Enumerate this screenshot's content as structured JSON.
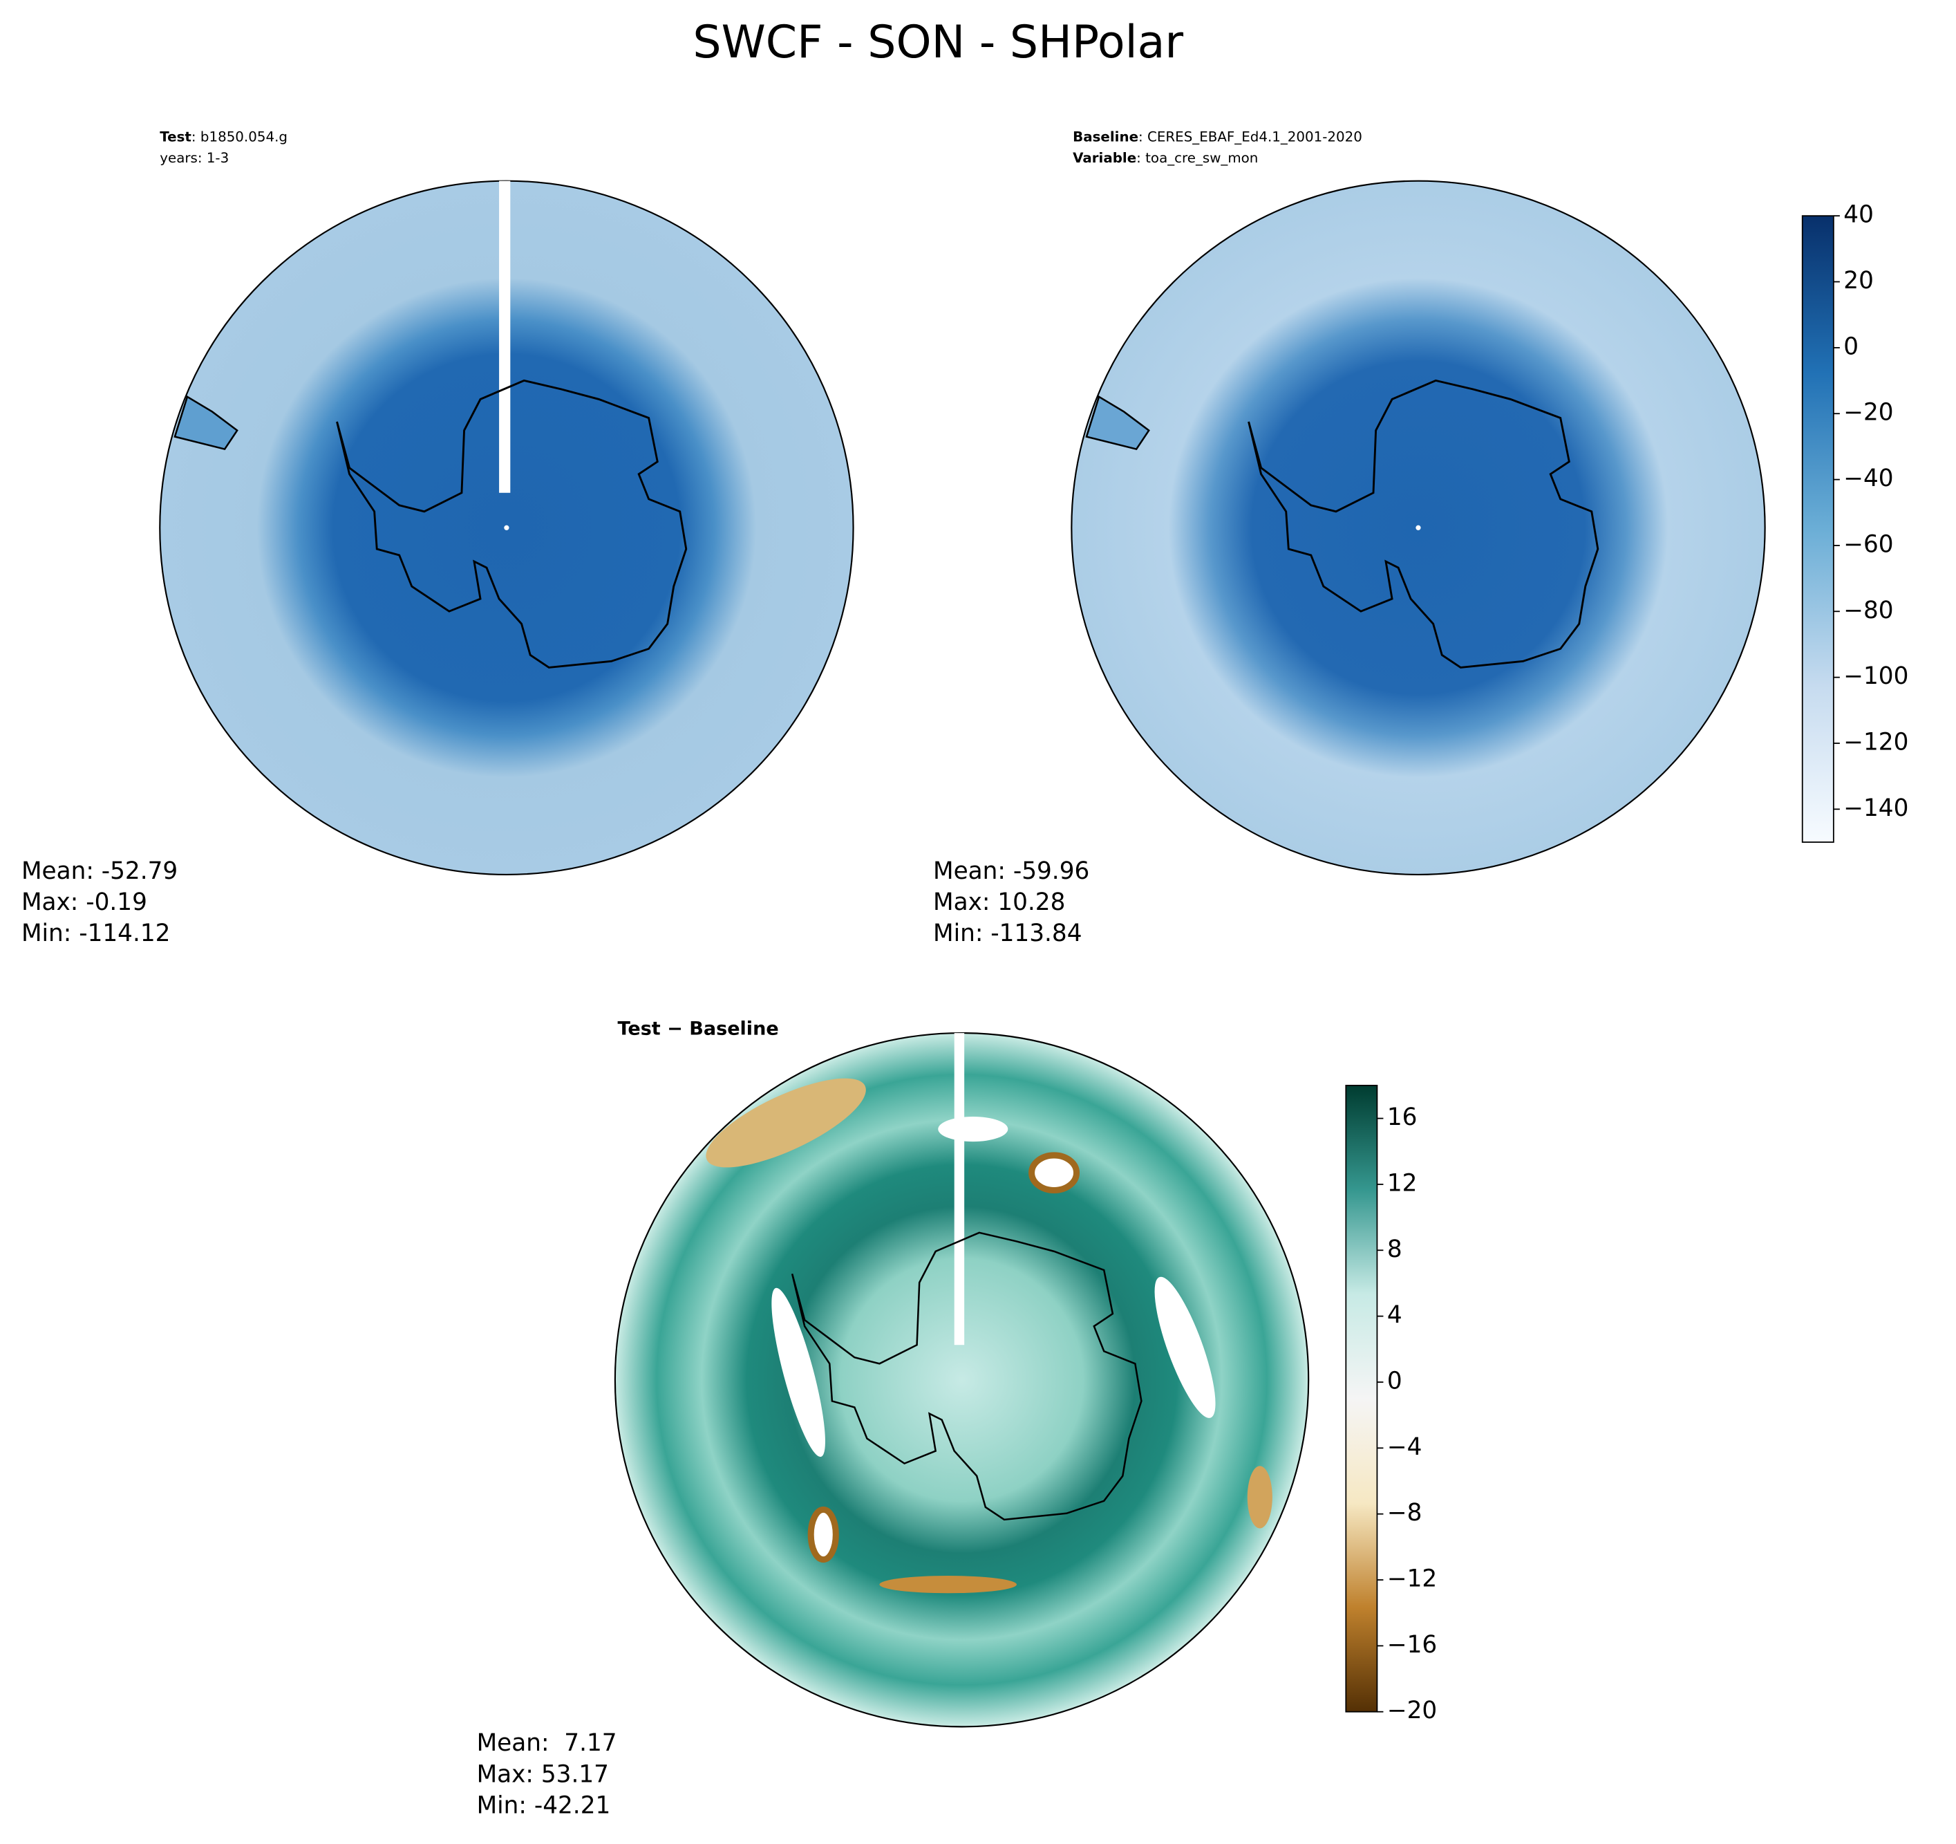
{
  "title": "SWCF - SON - SHPolar",
  "panels": [
    {
      "lines": [
        {
          "bold": "Test",
          "text": ": b1850.054.g"
        },
        {
          "text": "years: 1-3"
        }
      ],
      "stats": [
        "Mean: -52.79",
        "Max: -0.19",
        "Min: -114.12"
      ]
    },
    {
      "lines": [
        {
          "bold": "Baseline",
          "text": ": CERES_EBAF_Ed4.1_2001-2020"
        },
        {
          "bold": "Variable",
          "text": ": toa_cre_sw_mon"
        }
      ],
      "stats": [
        "Mean: -59.96",
        "Max: 10.28",
        "Min: -113.84"
      ]
    },
    {
      "lines": [
        {
          "bold": "Test − Baseline"
        }
      ],
      "stats": [
        "Mean:  7.17",
        "Max: 53.17",
        "Min: -42.21"
      ]
    }
  ],
  "colorbars": [
    {
      "lim": [
        -150,
        40
      ],
      "colors": [
        "#f7fbff",
        "#c6dbef",
        "#6baed6",
        "#2171b5",
        "#08306b"
      ],
      "ticks": [
        40,
        20,
        0,
        {
          "value": -20,
          "label": "−20"
        },
        {
          "value": -40,
          "label": "−40"
        },
        {
          "value": -60,
          "label": "−60"
        },
        {
          "value": -80,
          "label": "−80"
        },
        {
          "value": -100,
          "label": "−100"
        },
        {
          "value": -120,
          "label": "−120"
        },
        {
          "value": -140,
          "label": "−140"
        }
      ]
    },
    {
      "lim": [
        -20,
        18
      ],
      "colors": [
        "#543005",
        "#bf812d",
        "#f6e8c3",
        "#f5f5f5",
        "#c7eae5",
        "#35978f",
        "#003c30"
      ],
      "ticks": [
        16,
        12,
        8,
        4,
        0,
        {
          "value": -4,
          "label": "−4"
        },
        {
          "value": -8,
          "label": "−8"
        },
        {
          "value": -12,
          "label": "−12"
        },
        {
          "value": -16,
          "label": "−16"
        },
        {
          "value": -20,
          "label": "−20"
        }
      ]
    }
  ]
}
